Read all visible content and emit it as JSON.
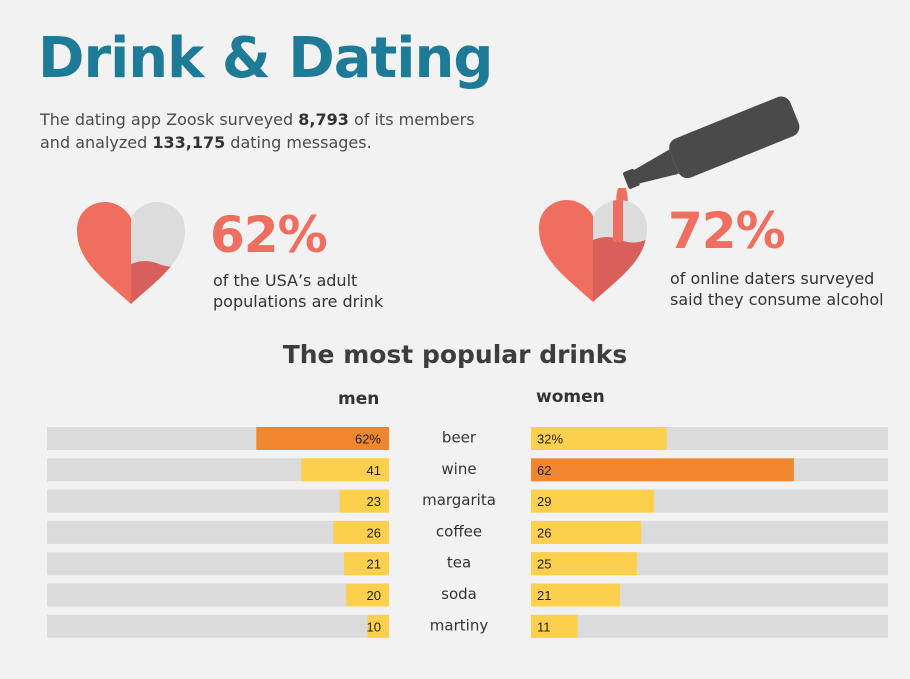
{
  "header": {
    "title": "Drink & Dating",
    "subtitle_prefix": "The dating app Zoosk surveyed ",
    "subtitle_members": "8,793",
    "subtitle_mid": " of its members and analyzed ",
    "subtitle_messages": "133,175",
    "subtitle_suffix": " dating messages."
  },
  "stats": [
    {
      "value": "62%",
      "desc": "of the USA’s adult populations are drink",
      "fill": 0.62
    },
    {
      "value": "72%",
      "desc": "of online daters surveyed said they consume alcohol",
      "fill": 0.72
    }
  ],
  "colors": {
    "title": "#1e7b98",
    "heart": "#ef6e60",
    "heart_empty": "#dcdcdc",
    "bar_highlight": "#f0862d",
    "bar_normal": "#fccf4d",
    "bar_track": "#dbdbdb",
    "bottle": "#4a4a4a"
  },
  "chart_data": {
    "type": "bar",
    "title": "The most popular drinks",
    "categories": [
      "beer",
      "wine",
      "margarita",
      "coffee",
      "tea",
      "soda",
      "martiny"
    ],
    "series": [
      {
        "name": "men",
        "values": [
          62,
          41,
          23,
          26,
          21,
          20,
          10
        ],
        "labels": [
          "62%",
          "41",
          "23",
          "26",
          "21",
          "20",
          "10"
        ],
        "highlight_index": 0
      },
      {
        "name": "women",
        "values": [
          32,
          62,
          29,
          26,
          25,
          21,
          11
        ],
        "labels": [
          "32%",
          "62",
          "29",
          "26",
          "25",
          "21",
          "11"
        ],
        "highlight_index": 1
      }
    ],
    "xlim": [
      0,
      100
    ]
  }
}
